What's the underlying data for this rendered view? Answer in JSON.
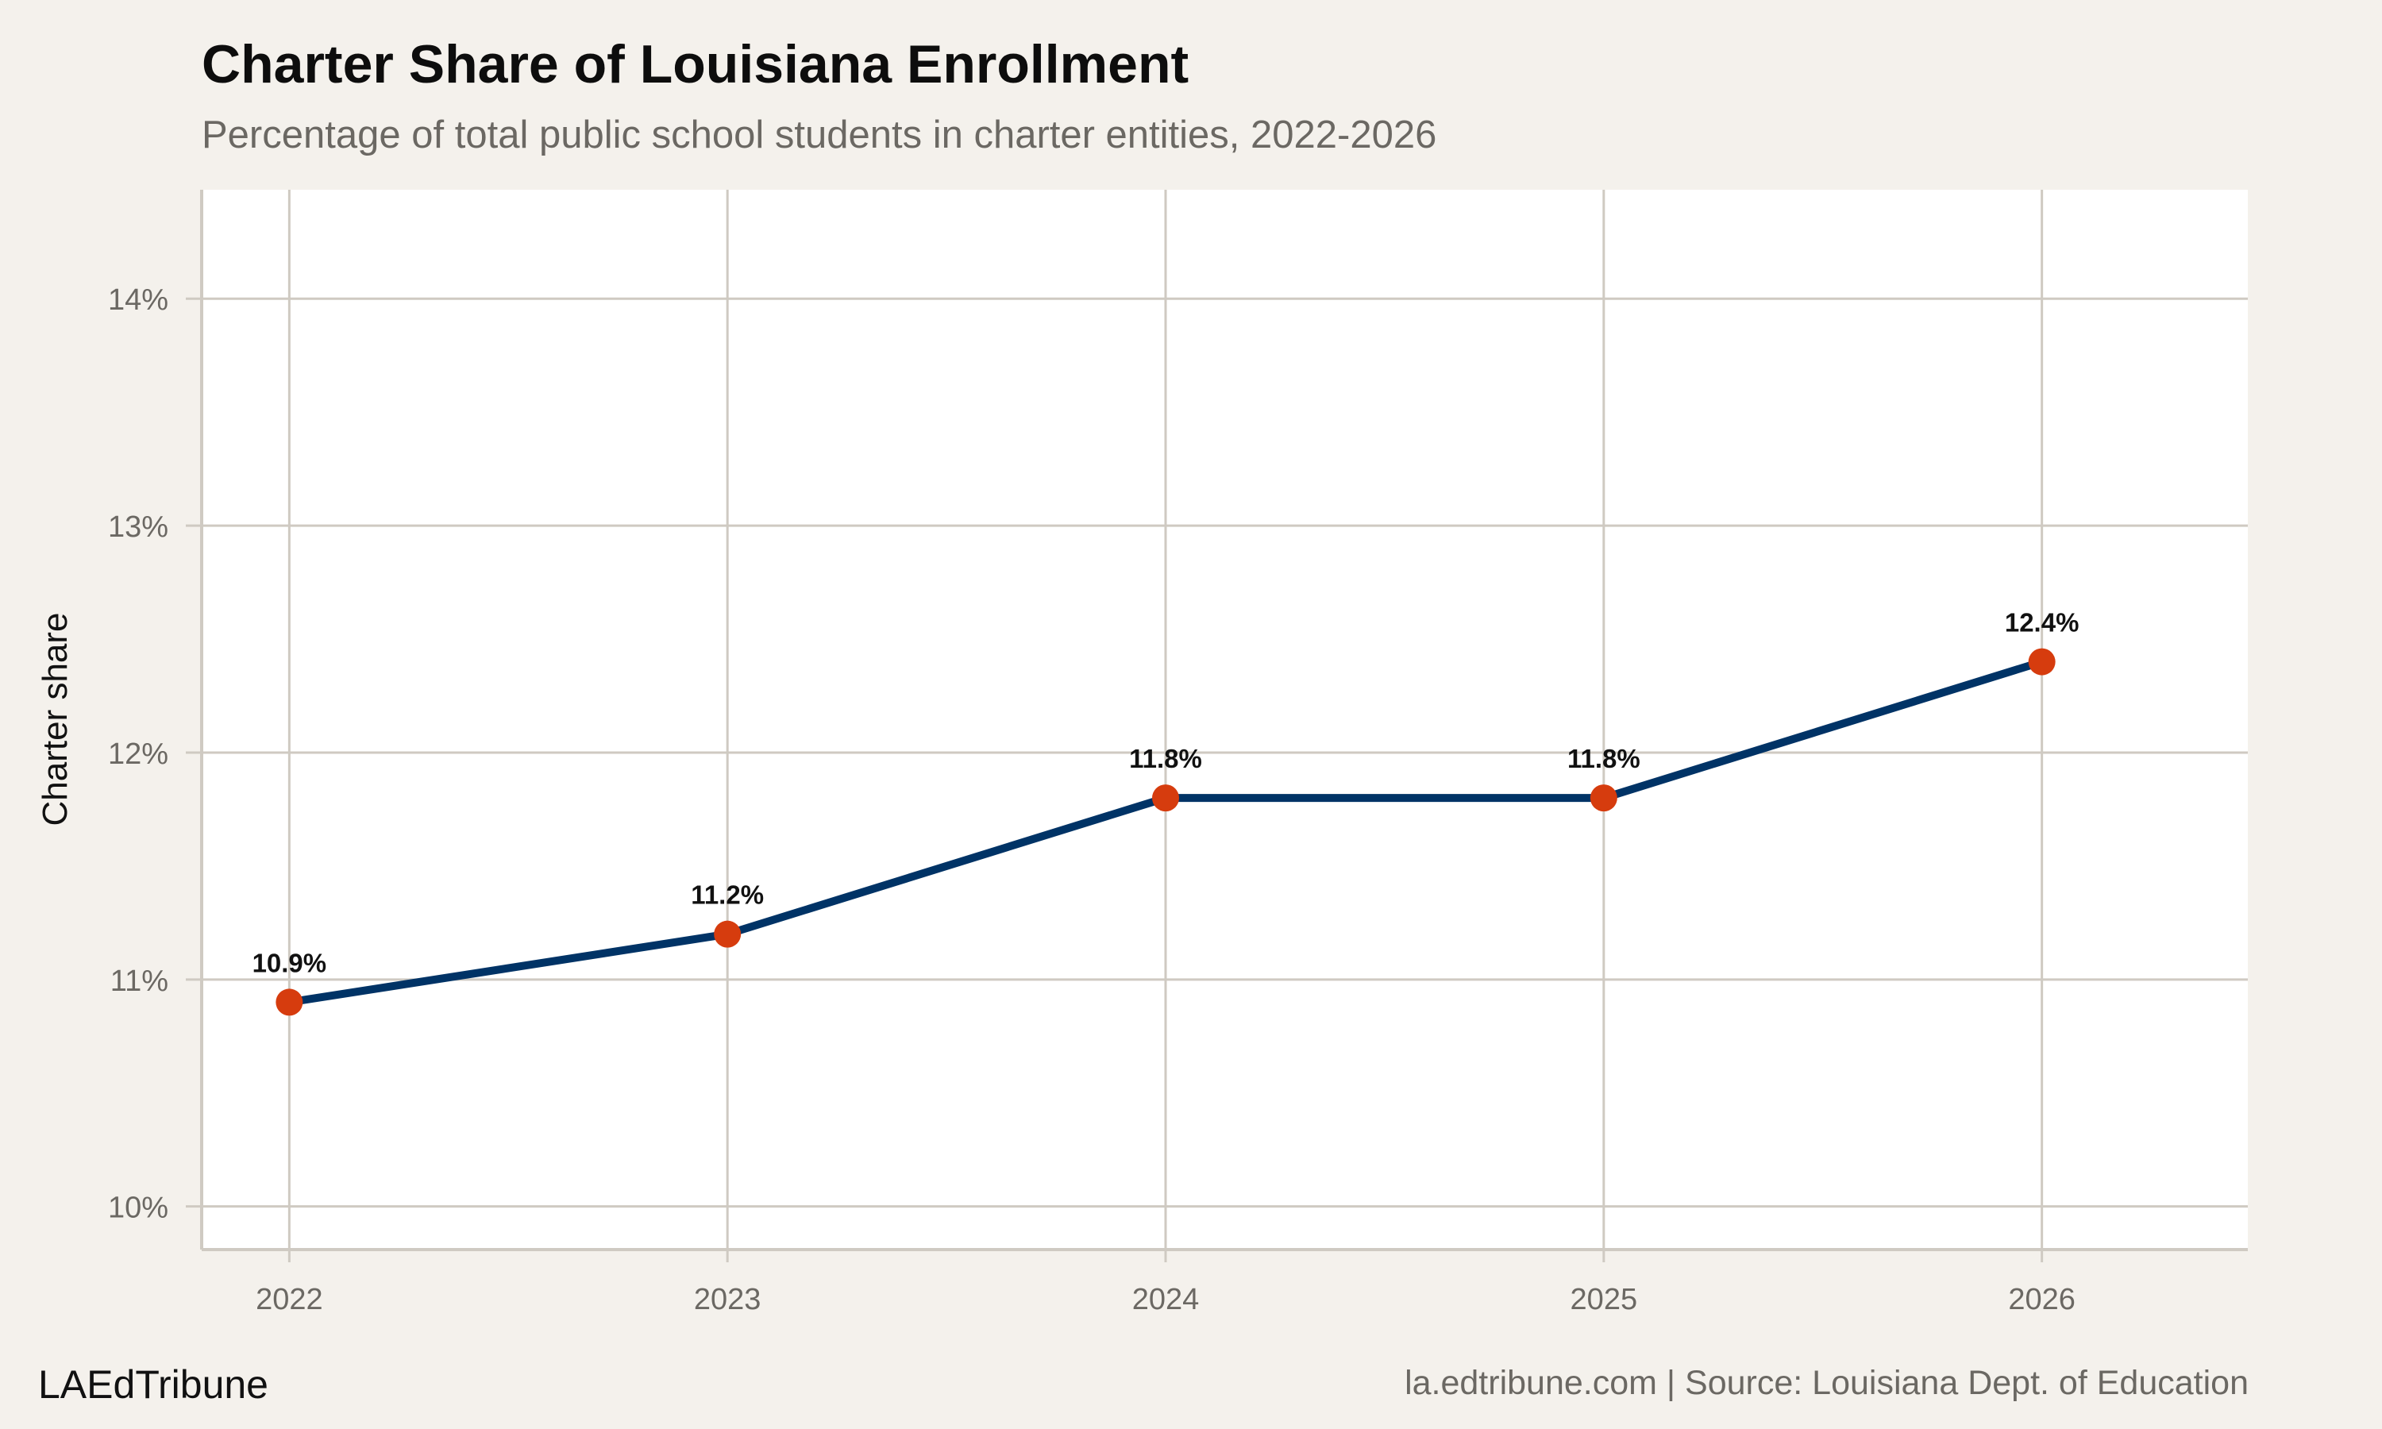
{
  "header": {
    "title": "Charter Share of Louisiana Enrollment",
    "subtitle": "Percentage of total public school students in charter entities, 2022-2026"
  },
  "footer": {
    "brand": "LAEdTribune",
    "source": "la.edtribune.com | Source: Louisiana Dept. of Education"
  },
  "colors": {
    "background": "#f4f1ec",
    "panel": "#ffffff",
    "grid": "#cfcac2",
    "line": "#003366",
    "point": "#d63c0e"
  },
  "chart_data": {
    "type": "line",
    "title": "Charter Share of Louisiana Enrollment",
    "subtitle": "Percentage of total public school students in charter entities, 2022-2026",
    "xlabel": "",
    "ylabel": "Charter share",
    "x": [
      2022,
      2023,
      2024,
      2025,
      2026
    ],
    "values": [
      10.9,
      11.2,
      11.8,
      11.8,
      12.4
    ],
    "data_labels": [
      "10.9%",
      "11.2%",
      "11.8%",
      "11.8%",
      "12.4%"
    ],
    "xticks": [
      "2022",
      "2023",
      "2024",
      "2025",
      "2026"
    ],
    "yticks": [
      10,
      11,
      12,
      13,
      14
    ],
    "ytick_labels": [
      "10%",
      "11%",
      "12%",
      "13%",
      "14%"
    ],
    "xlim": [
      2021.8,
      2026.47
    ],
    "ylim": [
      9.81,
      14.48
    ],
    "grid": true,
    "legend": "none"
  }
}
